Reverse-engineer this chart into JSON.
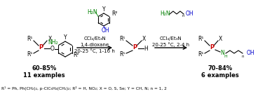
{
  "figsize": [
    3.78,
    1.34
  ],
  "dpi": 100,
  "bg_color": "#ffffff",
  "footer_text": "R¹ = Ph, Ph(CH₂)₂, p-ClC₆H₄(CH₂)₂; R² = H, NO₂; X = O, S, Se; Y = CH, N; n = 1, 2",
  "left_yield": "60-85%",
  "left_examples": "11 examples",
  "right_yield": "70-84%",
  "right_examples": "6 examples",
  "left_conditions": [
    "CCl₄/Et₃N",
    "1,4-dioxane",
    "20-25 °C, 1-16 h"
  ],
  "right_conditions": [
    "CCl₄/Et₃N",
    "20-25 °C, 2-4 h"
  ],
  "color_green": "#008000",
  "color_blue": "#0000cc",
  "color_red": "#cc0000",
  "color_black": "#000000",
  "color_P": "#cc0000"
}
